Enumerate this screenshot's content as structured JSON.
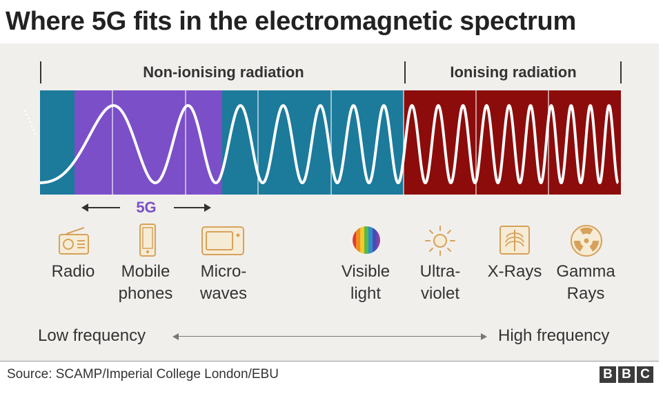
{
  "title": "Where 5G fits in the electromagnetic spectrum",
  "radiation": {
    "non_ionising": "Non-ionising radiation",
    "ionising": "Ionising radiation"
  },
  "fiveg": {
    "label": "5G",
    "color": "#7b4fc8"
  },
  "colors": {
    "non_ionising_band": "#1c7a9b",
    "fiveg_band": "#7b4fc8",
    "ionising_band": "#8c0c0c",
    "wave": "#ffffff"
  },
  "categories": [
    {
      "label": "Radio",
      "icon": "radio-icon"
    },
    {
      "label": "Mobile\nphones",
      "icon": "mobile-phone-icon"
    },
    {
      "label": "Micro-\nwaves",
      "icon": "microwave-icon"
    },
    {
      "label": "Visible\nlight",
      "icon": "visible-light-icon"
    },
    {
      "label": "Ultra-\nviolet",
      "icon": "sun-icon"
    },
    {
      "label": "X-Rays",
      "icon": "xray-icon"
    },
    {
      "label": "Gamma\nRays",
      "icon": "radiation-icon"
    }
  ],
  "frequency": {
    "low": "Low frequency",
    "high": "High frequency"
  },
  "source": "Source: SCAMP/Imperial College London/EBU",
  "logo": [
    "B",
    "B",
    "C"
  ]
}
